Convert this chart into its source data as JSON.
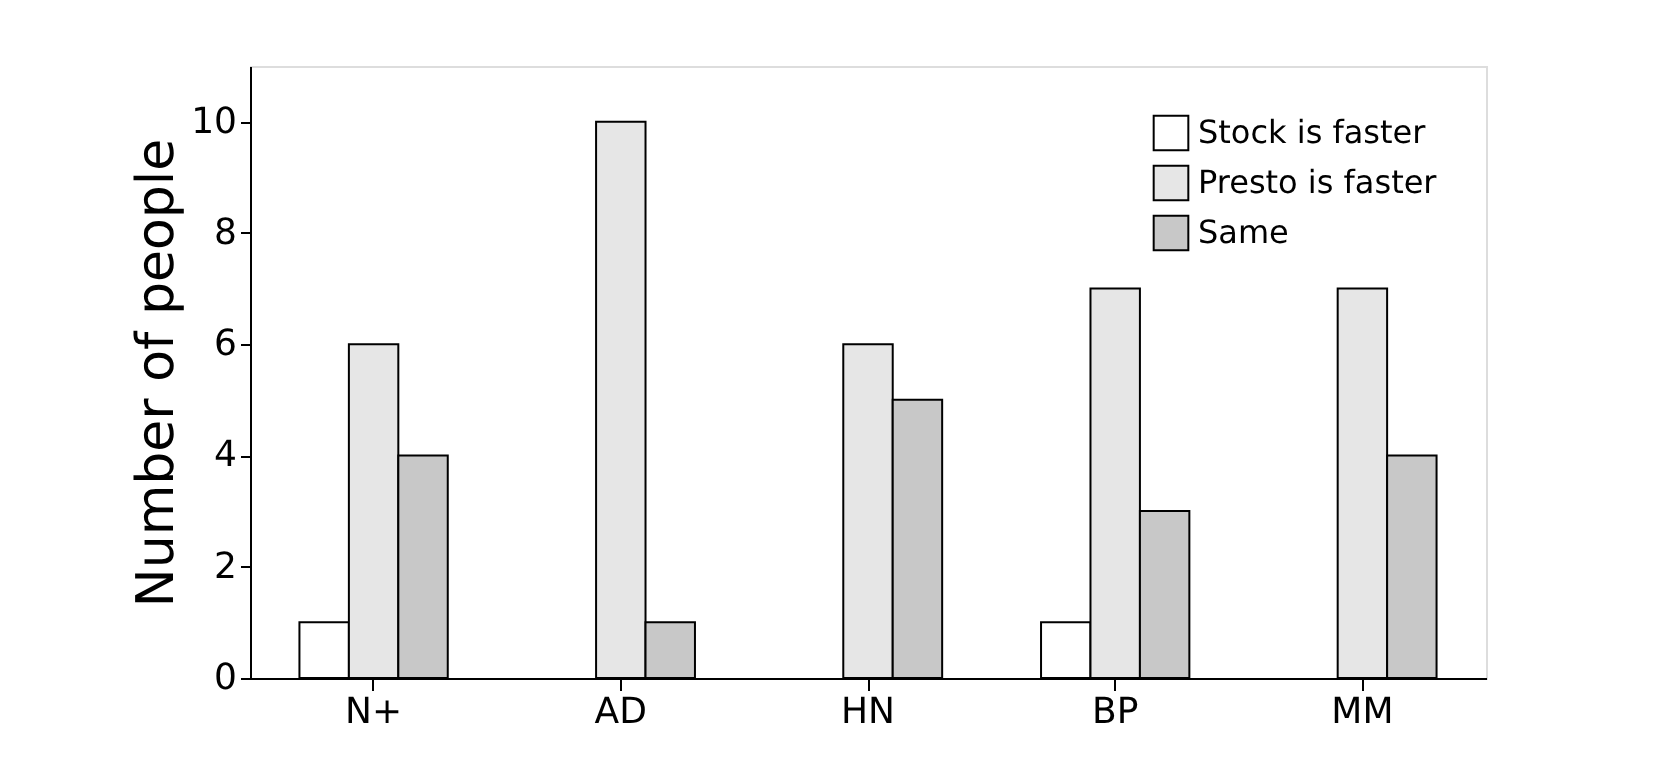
{
  "chart_data": {
    "type": "bar",
    "ylabel": "Number of people",
    "categories": [
      "N+",
      "AD",
      "HN",
      "BP",
      "MM"
    ],
    "series": [
      {
        "name": "Stock is faster",
        "color": "#ffffff",
        "values": [
          1,
          0,
          0,
          1,
          0
        ]
      },
      {
        "name": "Presto is faster",
        "color": "#e6e6e6",
        "values": [
          6,
          10,
          6,
          7,
          7
        ]
      },
      {
        "name": "Same",
        "color": "#c8c8c8",
        "values": [
          4,
          1,
          5,
          3,
          4
        ]
      }
    ],
    "ylim": [
      0,
      11
    ],
    "yticks": [
      0,
      2,
      4,
      6,
      8,
      10
    ],
    "grid": false,
    "legend": "top right"
  }
}
